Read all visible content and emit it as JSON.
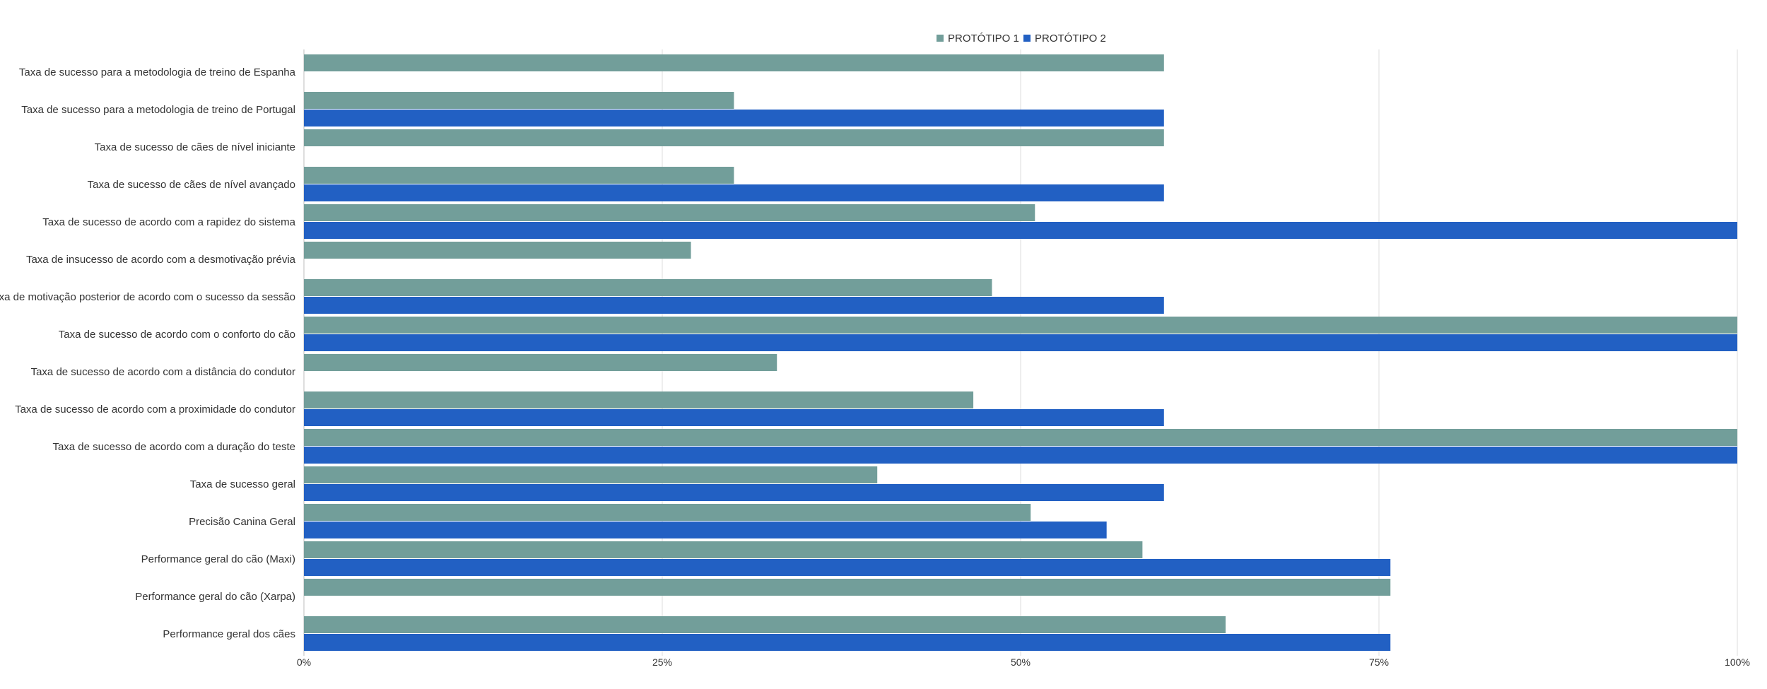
{
  "chart_data": {
    "type": "bar",
    "orientation": "horizontal",
    "categories": [
      "Taxa de sucesso para a metodologia de treino de Espanha",
      "Taxa de sucesso para a metodologia de treino de Portugal",
      "Taxa de sucesso de cães de nível iniciante",
      "Taxa de sucesso de cães de nível avançado",
      "Taxa de sucesso de acordo com a rapidez do sistema",
      "Taxa de insucesso de acordo com a desmotivação prévia",
      "Taxa de motivação posterior de acordo com o sucesso da sessão",
      "Taxa de sucesso de acordo com o conforto do cão",
      "Taxa de sucesso de acordo com a distância do condutor",
      "Taxa de sucesso de acordo com a proximidade do condutor",
      "Taxa de sucesso de acordo com a duração do teste",
      "Taxa de sucesso geral",
      "Precisão Canina Geral",
      "Performance geral do cão (Maxi)",
      "Performance geral do cão (Xarpa)",
      "Performance geral dos cães"
    ],
    "series": [
      {
        "name": "PROTÓTIPO 1",
        "color": "#729e9a",
        "values": [
          60,
          30,
          60,
          30,
          51,
          27,
          48,
          100,
          33,
          46.7,
          100,
          40,
          50.7,
          58.5,
          75.8,
          64.3
        ]
      },
      {
        "name": "PROTÓTIPO 2",
        "color": "#2260c3",
        "values": [
          null,
          60,
          null,
          60,
          100,
          null,
          60,
          100,
          null,
          60,
          100,
          60,
          56,
          75.8,
          null,
          75.8
        ]
      }
    ],
    "xlim": [
      0,
      100
    ],
    "x_ticks": [
      0,
      25,
      50,
      75,
      100
    ],
    "x_tick_labels": [
      "0%",
      "25%",
      "50%",
      "75%",
      "100%"
    ],
    "grid": "vertical",
    "legend_position": "top-center",
    "title": "",
    "xlabel": "",
    "ylabel": ""
  }
}
